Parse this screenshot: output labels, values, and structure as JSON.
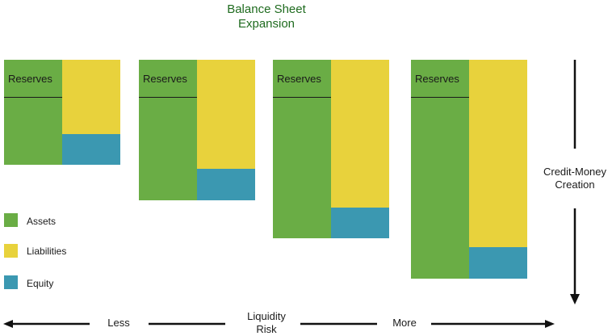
{
  "title": {
    "line1": "Balance Sheet",
    "line2": "Expansion"
  },
  "sheets": [
    {
      "id": "stage-1",
      "reserves_label": "Reserves"
    },
    {
      "id": "stage-2",
      "reserves_label": "Reserves"
    },
    {
      "id": "stage-3",
      "reserves_label": "Reserves"
    },
    {
      "id": "stage-4",
      "reserves_label": "Reserves"
    }
  ],
  "legend": [
    {
      "label": "Assets",
      "color": "#6aad45"
    },
    {
      "label": "Liabilities",
      "color": "#e8d23c"
    },
    {
      "label": "Equity",
      "color": "#3b98b1"
    }
  ],
  "side_arrow": {
    "line1": "Credit-Money",
    "line2": "Creation"
  },
  "bottom_axis": {
    "left": "Less",
    "center_line1": "Liquidity",
    "center_line2": "Risk",
    "right": "More"
  }
}
